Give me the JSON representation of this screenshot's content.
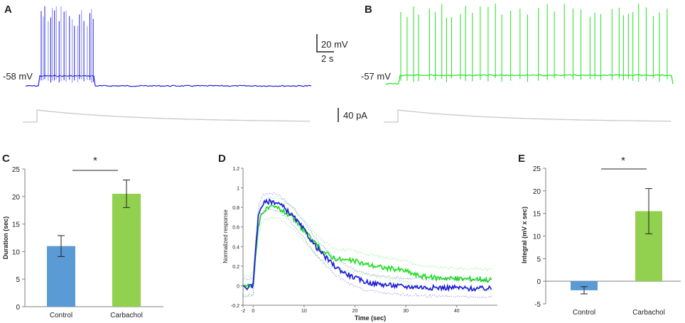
{
  "colors": {
    "control": "#5b9bd5",
    "carbachol": "#92d050",
    "trace_control": "#1f1fd6",
    "trace_control_light": "#8c8cf2",
    "trace_carbachol": "#22e022",
    "stim": "#c8c8c8",
    "axis": "#7f7f7f",
    "ink": "#222222"
  },
  "panels": {
    "A": {
      "label": "A",
      "resting_label": "-58 mV"
    },
    "B": {
      "label": "B",
      "resting_label": "-57 mV"
    },
    "C": {
      "label": "C"
    },
    "D": {
      "label": "D"
    },
    "E": {
      "label": "E"
    }
  },
  "scale_bars": {
    "voltage": "20 mV",
    "time": "2 s",
    "current": "40 pA"
  },
  "chart_data": [
    {
      "id": "C",
      "type": "bar",
      "title": "",
      "xlabel": "",
      "ylabel": "Duration (sec)",
      "categories": [
        "Control",
        "Carbachol"
      ],
      "values": [
        11.0,
        20.5
      ],
      "errors": [
        1.9,
        2.5
      ],
      "ylim": [
        0,
        25
      ],
      "yticks": [
        0,
        5,
        10,
        15,
        20,
        25
      ],
      "significance": "*"
    },
    {
      "id": "D",
      "type": "line",
      "title": "",
      "xlabel": "Time (sec)",
      "ylabel": "Normalized response",
      "xlim": [
        -2,
        48
      ],
      "ylim": [
        -0.2,
        1.2
      ],
      "xticks": [
        -2,
        0,
        10,
        20,
        30,
        40
      ],
      "yticks": [
        -0.2,
        0,
        0.2,
        0.4,
        0.6,
        0.8,
        1,
        1.2
      ],
      "series": [
        {
          "name": "Carbachol",
          "color": "#22e022",
          "x": [
            -2,
            -0.5,
            0,
            0.5,
            1,
            1.5,
            2,
            3,
            4,
            5,
            6,
            8,
            10,
            12,
            14,
            16,
            18,
            20,
            22,
            24,
            26,
            28,
            30,
            32,
            34,
            36,
            38,
            40,
            42,
            44,
            46,
            47
          ],
          "y": [
            0.0,
            0.0,
            0.02,
            0.35,
            0.6,
            0.72,
            0.76,
            0.79,
            0.8,
            0.79,
            0.76,
            0.68,
            0.56,
            0.44,
            0.34,
            0.28,
            0.26,
            0.25,
            0.22,
            0.2,
            0.18,
            0.17,
            0.15,
            0.11,
            0.09,
            0.08,
            0.08,
            0.07,
            0.07,
            0.07,
            0.06,
            0.06
          ]
        },
        {
          "name": "Control",
          "color": "#1f1fd6",
          "x": [
            -2,
            -0.5,
            0,
            0.5,
            1,
            1.5,
            2,
            3,
            4,
            5,
            6,
            8,
            10,
            12,
            14,
            16,
            18,
            20,
            22,
            24,
            26,
            28,
            30,
            32,
            34,
            36,
            38,
            40,
            42,
            44,
            46,
            47
          ],
          "y": [
            -0.02,
            -0.01,
            0.0,
            0.4,
            0.7,
            0.8,
            0.84,
            0.86,
            0.86,
            0.84,
            0.8,
            0.7,
            0.57,
            0.42,
            0.3,
            0.2,
            0.13,
            0.08,
            0.04,
            0.02,
            0.01,
            0.0,
            -0.01,
            -0.01,
            -0.02,
            -0.02,
            -0.02,
            -0.02,
            -0.03,
            -0.03,
            -0.03,
            -0.03
          ]
        }
      ]
    },
    {
      "id": "E",
      "type": "bar",
      "title": "",
      "xlabel": "",
      "ylabel": "Integral (mV x sec)",
      "categories": [
        "Control",
        "Carbachol"
      ],
      "values": [
        -2.0,
        15.5
      ],
      "errors": [
        0.8,
        5.0
      ],
      "ylim": [
        -5,
        25
      ],
      "yticks": [
        -5,
        0,
        5,
        10,
        15,
        20,
        25
      ],
      "significance": "*"
    }
  ]
}
